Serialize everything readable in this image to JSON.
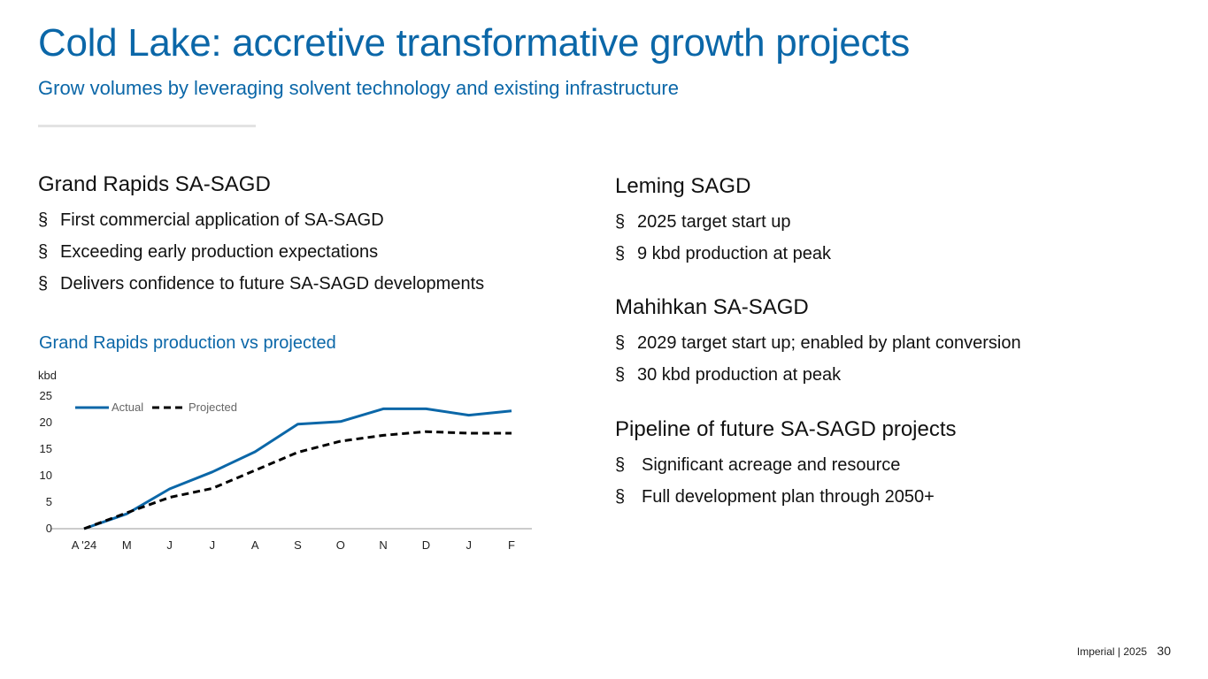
{
  "title": "Cold Lake: accretive transformative growth projects",
  "subtitle": "Grow volumes by leveraging solvent technology and existing infrastructure",
  "bullet_glyph": "§",
  "grand_rapids": {
    "heading": "Grand Rapids SA-SAGD",
    "bullets": [
      "First commercial application of SA-SAGD",
      "Exceeding early production expectations",
      "Delivers confidence to future SA-SAGD developments"
    ]
  },
  "leming": {
    "heading": "Leming SAGD",
    "bullets": [
      "2025 target start up",
      "9 kbd production at peak"
    ]
  },
  "mahihkan": {
    "heading": "Mahihkan SA-SAGD",
    "bullets": [
      "2029 target start up; enabled by plant conversion",
      "30 kbd production at peak"
    ]
  },
  "pipeline": {
    "heading": "Pipeline of future SA-SAGD projects",
    "bullets": [
      "Significant acreage and resource",
      "Full development plan through 2050+"
    ]
  },
  "chart_data": {
    "type": "line",
    "title": "Grand Rapids production vs projected",
    "ylabel": "kbd",
    "xlabel": "",
    "categories": [
      "A '24",
      "M",
      "J",
      "J",
      "A",
      "S",
      "O",
      "N",
      "D",
      "J",
      "F"
    ],
    "ylim": [
      0,
      25
    ],
    "yticks": [
      0,
      5,
      10,
      15,
      20,
      25
    ],
    "grid": false,
    "legend_position": "top-left",
    "series": [
      {
        "name": "Actual",
        "style": "solid",
        "color": "#0b67a8",
        "values": [
          0,
          2.8,
          7.5,
          10.7,
          14.5,
          19.7,
          20.2,
          22.6,
          22.6,
          21.4,
          22.2
        ]
      },
      {
        "name": "Projected",
        "style": "dashed",
        "color": "#000000",
        "values": [
          0,
          3.0,
          5.9,
          7.6,
          11.0,
          14.4,
          16.5,
          17.6,
          18.3,
          18.0,
          18.0
        ]
      }
    ]
  },
  "footer": {
    "company": "Imperial",
    "separator": "|",
    "year": "2025",
    "page_number": "30"
  },
  "colors": {
    "accent": "#0b67a8",
    "text": "#111111",
    "divider": "#e3e3e3"
  }
}
